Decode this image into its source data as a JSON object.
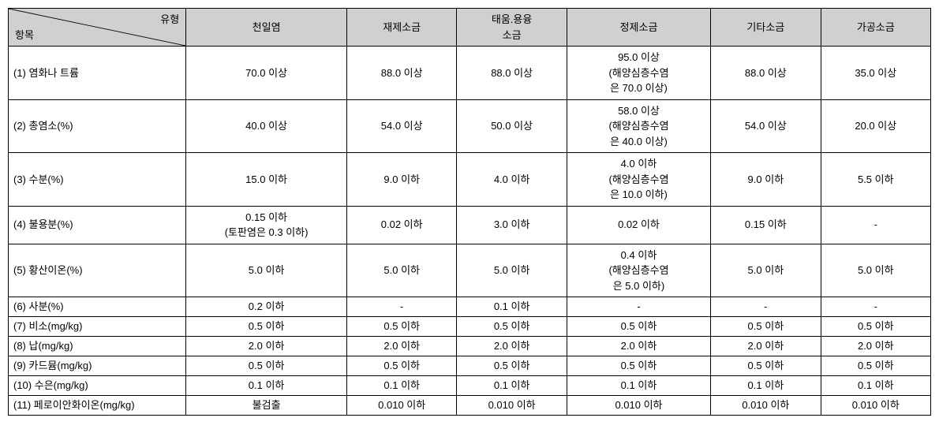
{
  "header": {
    "diag_top": "유형",
    "diag_bottom": "항목",
    "cols": [
      "천일염",
      "재제소금",
      "태움.용융\n소금",
      "정제소금",
      "기타소금",
      "가공소금"
    ]
  },
  "rows": [
    {
      "label": "(1) 염화나 트륨",
      "cells": [
        "70.0  이상",
        "88.0 이상",
        "88.0 이상",
        "95.0 이상\n(해양심층수염\n은 70.0 이상)",
        "88.0 이상",
        "35.0 이상"
      ],
      "tall": true
    },
    {
      "label": "(2)  총염소(%)",
      "cells": [
        "40.0  이상",
        "54.0 이상",
        "50.0 이상",
        "58.0 이상\n(해양심층수염\n은 40.0 이상)",
        "54.0 이상",
        "20.0 이상"
      ],
      "tall": true
    },
    {
      "label": "(3)  수분(%)",
      "cells": [
        "15.0  이하",
        "9.0 이하",
        "4.0 이하",
        "4.0 이하\n(해양심층수염\n은 10.0 이하)",
        "9.0 이하",
        "5.5 이하"
      ],
      "tall": true
    },
    {
      "label": "(4)  불용분(%)",
      "cells": [
        "0.15  이하\n(토판염은 0.3 이하)",
        "0.02 이하",
        "3.0 이하",
        "0.02 이하",
        "0.15 이하",
        "-"
      ],
      "tall": false
    },
    {
      "label": "(5)  황산이온(%)",
      "cells": [
        "5.0 이하",
        "5.0 이하",
        "5.0 이하",
        "0.4 이하\n(해양심층수염\n은 5.0 이하)",
        "5.0 이하",
        "5.0 이하"
      ],
      "tall": true
    },
    {
      "label": "(6)  사분(%)",
      "cells": [
        "0.2 이하",
        "-",
        "0.1 이하",
        "-",
        "-",
        "-"
      ],
      "short": true
    },
    {
      "label": "(7)  비소(mg/kg)",
      "cells": [
        "0.5 이하",
        "0.5 이하",
        "0.5 이하",
        "0.5 이하",
        "0.5 이하",
        "0.5 이하"
      ],
      "short": true
    },
    {
      "label": "(8)  납(mg/kg)",
      "cells": [
        "2.0 이하",
        "2.0 이하",
        "2.0 이하",
        "2.0 이하",
        "2.0 이하",
        "2.0 이하"
      ],
      "short": true
    },
    {
      "label": "(9)  카드뮴(mg/kg)",
      "cells": [
        "0.5 이하",
        "0.5 이하",
        "0.5 이하",
        "0.5 이하",
        "0.5 이하",
        "0.5 이하"
      ],
      "short": true
    },
    {
      "label": "(10)  수은(mg/kg)",
      "cells": [
        "0.1 이하",
        "0.1 이하",
        "0.1 이하",
        "0.1 이하",
        "0.1 이하",
        "0.1 이하"
      ],
      "short": true
    },
    {
      "label": "(11)  페로이안화이온(mg/kg)",
      "cells": [
        "불검출",
        "0.010 이하",
        "0.010 이하",
        "0.010 이하",
        "0.010 이하",
        "0.010 이하"
      ],
      "short": true
    }
  ],
  "style": {
    "header_bg": "#d0d0d0",
    "border_color": "#000000",
    "fontsize": 13
  }
}
